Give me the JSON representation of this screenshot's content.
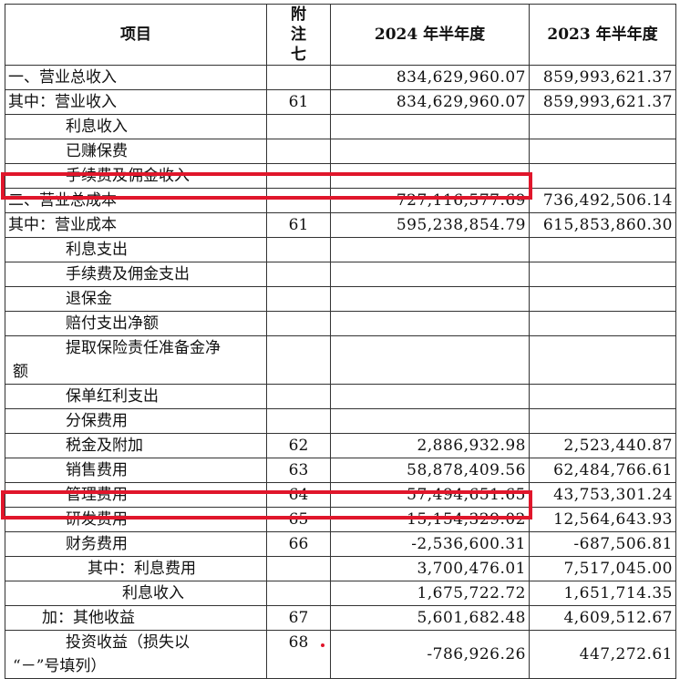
{
  "header": {
    "item": "项目",
    "note": "附注七",
    "cur": "2024 年半年度",
    "prev": "2023 年半年度"
  },
  "rows": [
    {
      "item": "一、营业总收入",
      "note": "",
      "cur": "834,629,960.07",
      "prev": "859,993,621.37"
    },
    {
      "item": "其中：营业收入",
      "note": "61",
      "cur": "834,629,960.07",
      "prev": "859,993,621.37"
    },
    {
      "item": "利息收入",
      "note": "",
      "cur": "",
      "prev": ""
    },
    {
      "item": "已赚保费",
      "note": "",
      "cur": "",
      "prev": ""
    },
    {
      "item": "手续费及佣金收入",
      "note": "",
      "cur": "",
      "prev": ""
    },
    {
      "item": "二、营业总成本",
      "note": "",
      "cur": "727,116,577.69",
      "prev": "736,492,506.14"
    },
    {
      "item": "其中：营业成本",
      "note": "61",
      "cur": "595,238,854.79",
      "prev": "615,853,860.30"
    },
    {
      "item": "利息支出",
      "note": "",
      "cur": "",
      "prev": ""
    },
    {
      "item": "手续费及佣金支出",
      "note": "",
      "cur": "",
      "prev": ""
    },
    {
      "item": "退保金",
      "note": "",
      "cur": "",
      "prev": ""
    },
    {
      "item": "赔付支出净额",
      "note": "",
      "cur": "",
      "prev": ""
    },
    {
      "item_a": "提取保险责任准备金净",
      "item_b": "额",
      "note": "",
      "cur": "",
      "prev": ""
    },
    {
      "item": "保单红利支出",
      "note": "",
      "cur": "",
      "prev": ""
    },
    {
      "item": "分保费用",
      "note": "",
      "cur": "",
      "prev": ""
    },
    {
      "item": "税金及附加",
      "note": "62",
      "cur": "2,886,932.98",
      "prev": "2,523,440.87"
    },
    {
      "item": "销售费用",
      "note": "63",
      "cur": "58,878,409.56",
      "prev": "62,484,766.61"
    },
    {
      "item": "管理费用",
      "note": "64",
      "cur": "57,494,651.65",
      "prev": "43,753,301.24"
    },
    {
      "item": "研发费用",
      "note": "65",
      "cur": "15,154,329.02",
      "prev": "12,564,643.93"
    },
    {
      "item": "财务费用",
      "note": "66",
      "cur": "-2,536,600.31",
      "prev": "-687,506.81"
    },
    {
      "item": "其中：利息费用",
      "note": "",
      "cur": "3,700,476.01",
      "prev": "7,517,045.00"
    },
    {
      "item": "利息收入",
      "note": "",
      "cur": "1,675,722.72",
      "prev": "1,651,714.35"
    },
    {
      "item": "加：其他收益",
      "note": "67",
      "cur": "5,601,682.48",
      "prev": "4,609,512.67"
    },
    {
      "item_a": "投资收益（损失以",
      "item_b": "“－”号填列）",
      "note": "68",
      "cur": "-786,926.26",
      "prev": "447,272.61"
    }
  ],
  "highlight_color": "#e0162b"
}
